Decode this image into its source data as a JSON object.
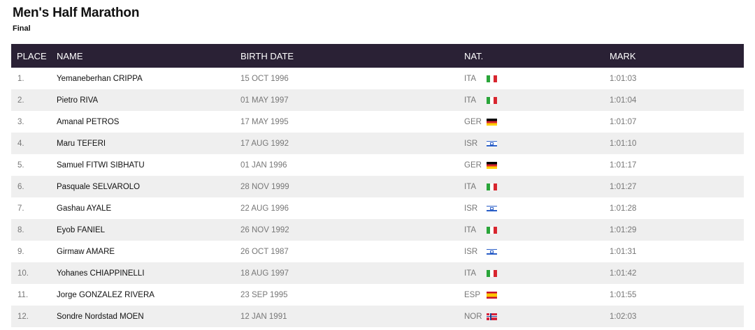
{
  "title": "Men's Half Marathon",
  "subtitle": "Final",
  "table": {
    "headers": {
      "place": "PLACE",
      "name": "NAME",
      "birth": "BIRTH DATE",
      "nat": "NAT.",
      "mark": "MARK"
    },
    "rows": [
      {
        "place": "1.",
        "name": "Yemaneberhan CRIPPA",
        "birth": "15 OCT 1996",
        "nat": "ITA",
        "flag": "ita-flag",
        "mark": "1:01:03"
      },
      {
        "place": "2.",
        "name": "Pietro RIVA",
        "birth": "01 MAY 1997",
        "nat": "ITA",
        "flag": "ita-flag",
        "mark": "1:01:04"
      },
      {
        "place": "3.",
        "name": "Amanal PETROS",
        "birth": "17 MAY 1995",
        "nat": "GER",
        "flag": "ger-flag",
        "mark": "1:01:07"
      },
      {
        "place": "4.",
        "name": "Maru TEFERI",
        "birth": "17 AUG 1992",
        "nat": "ISR",
        "flag": "isr-flag",
        "mark": "1:01:10"
      },
      {
        "place": "5.",
        "name": "Samuel FITWI SIBHATU",
        "birth": "01 JAN 1996",
        "nat": "GER",
        "flag": "ger-flag",
        "mark": "1:01:17"
      },
      {
        "place": "6.",
        "name": "Pasquale SELVAROLO",
        "birth": "28 NOV 1999",
        "nat": "ITA",
        "flag": "ita-flag",
        "mark": "1:01:27"
      },
      {
        "place": "7.",
        "name": "Gashau AYALE",
        "birth": "22 AUG 1996",
        "nat": "ISR",
        "flag": "isr-flag",
        "mark": "1:01:28"
      },
      {
        "place": "8.",
        "name": "Eyob FANIEL",
        "birth": "26 NOV 1992",
        "nat": "ITA",
        "flag": "ita-flag",
        "mark": "1:01:29"
      },
      {
        "place": "9.",
        "name": "Girmaw AMARE",
        "birth": "26 OCT 1987",
        "nat": "ISR",
        "flag": "isr-flag",
        "mark": "1:01:31"
      },
      {
        "place": "10.",
        "name": "Yohanes CHIAPPINELLI",
        "birth": "18 AUG 1997",
        "nat": "ITA",
        "flag": "ita-flag",
        "mark": "1:01:42"
      },
      {
        "place": "11.",
        "name": "Jorge GONZALEZ RIVERA",
        "birth": "23 SEP 1995",
        "nat": "ESP",
        "flag": "esp-flag",
        "mark": "1:01:55"
      },
      {
        "place": "12.",
        "name": "Sondre Nordstad MOEN",
        "birth": "12 JAN 1991",
        "nat": "NOR",
        "flag": "nor-flag",
        "mark": "1:02:03"
      }
    ]
  },
  "colors": {
    "header_bg": "#2a2135",
    "row_alt_bg": "#efefef"
  }
}
